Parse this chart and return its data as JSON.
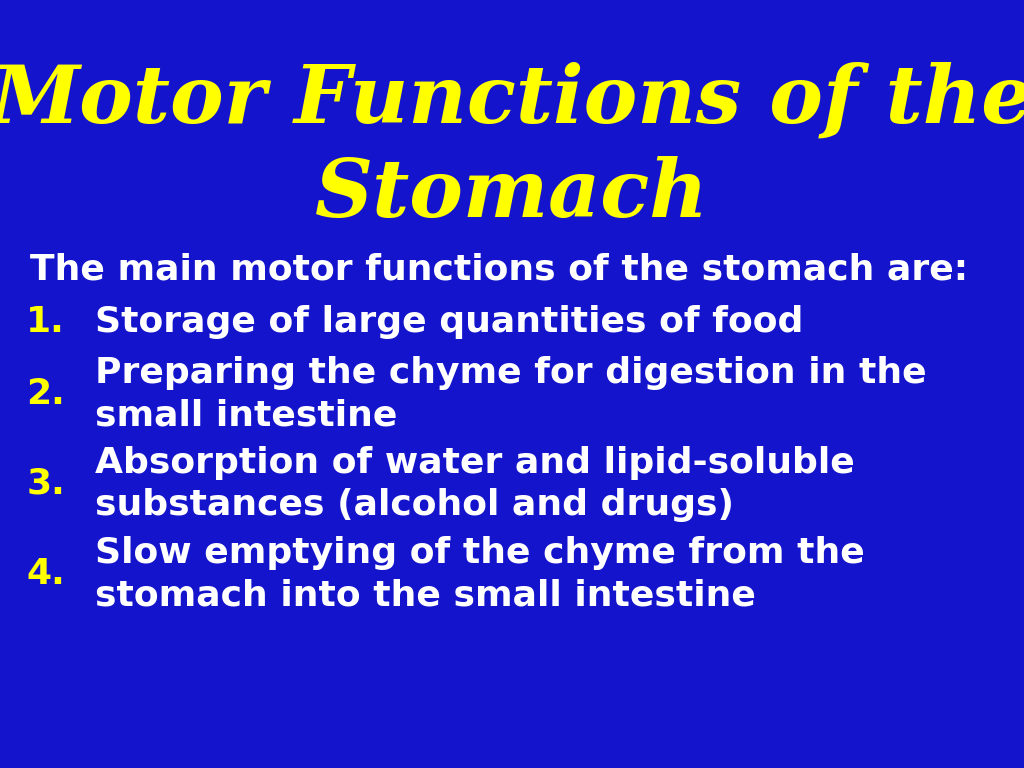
{
  "background_color": "#1414CC",
  "title_line1": "Motor Functions of the",
  "title_line2": "Stomach",
  "title_color": "#FFFF00",
  "title_fontsize": 58,
  "intro_text": "The main motor functions of the stomach are:",
  "intro_color": "#FFFFFF",
  "intro_fontsize": 26,
  "items": [
    {
      "number": "1.",
      "text_line1": "Storage of large quantities of food",
      "text_line2": ""
    },
    {
      "number": "2.",
      "text_line1": "Preparing the chyme for digestion in the",
      "text_line2": "small intestine"
    },
    {
      "number": "3.",
      "text_line1": "Absorption of water and lipid-soluble",
      "text_line2": "substances (alcohol and drugs)"
    },
    {
      "number": "4.",
      "text_line1": "Slow emptying of the chyme from the",
      "text_line2": "stomach into the small intestine"
    }
  ],
  "number_color": "#FFFF00",
  "item_text_color": "#FFFFFF",
  "item_fontsize": 26,
  "number_fontsize": 26
}
